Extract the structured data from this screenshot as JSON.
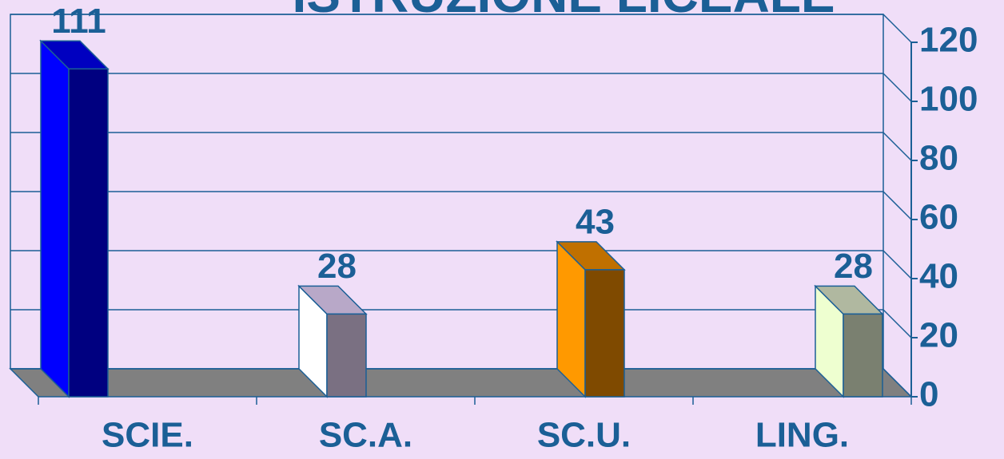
{
  "chart_data": {
    "type": "bar3d",
    "title": "ISTRUZIONE LICEALE",
    "categories": [
      "SCIE.",
      "SC.A.",
      "SC.U.",
      "LING."
    ],
    "values": [
      111,
      28,
      43,
      28
    ],
    "colors": [
      {
        "front": "#000080",
        "side": "#0000ff",
        "top": "#0000c0"
      },
      {
        "front": "#7a7082",
        "side": "#ffffff",
        "top": "#b8a8c8"
      },
      {
        "front": "#7f4a00",
        "side": "#ff9900",
        "top": "#c07000"
      },
      {
        "front": "#7a8070",
        "side": "#eeffd0",
        "top": "#b0b8a0"
      }
    ],
    "ylim": [
      0,
      120
    ],
    "yticks": [
      0,
      20,
      40,
      60,
      80,
      100,
      120
    ],
    "grid": true
  }
}
